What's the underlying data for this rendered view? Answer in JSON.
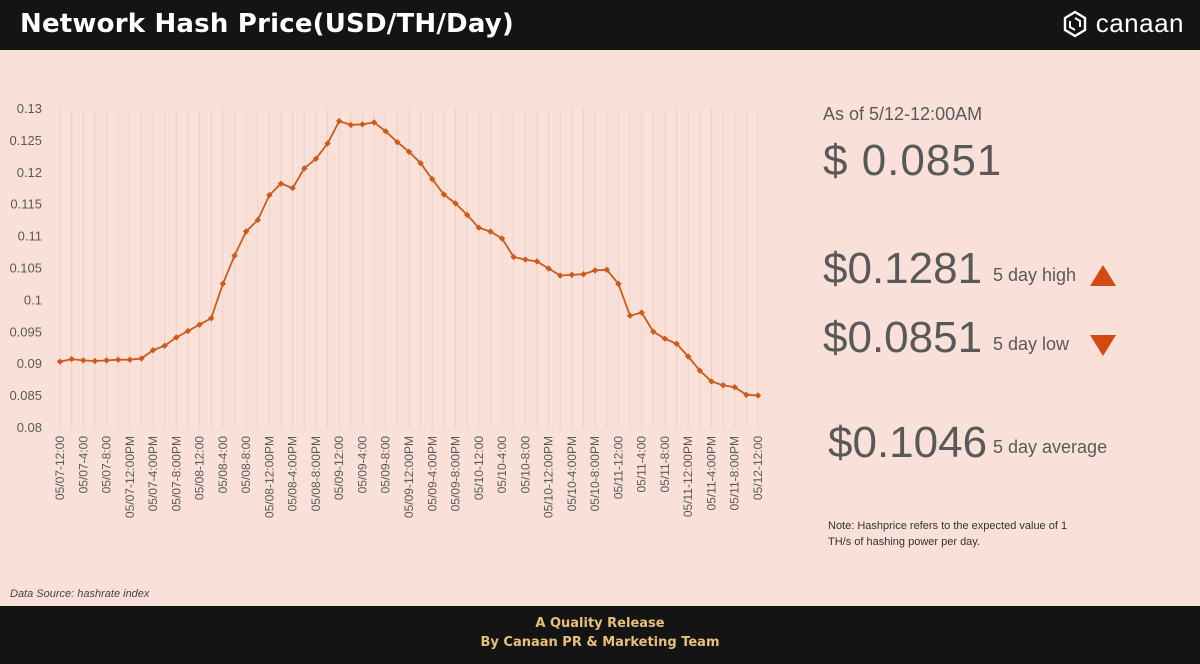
{
  "header": {
    "title": "Network Hash Price(USD/TH/Day)",
    "brand": "canaan",
    "brand_icon": "hexagon-cube-icon"
  },
  "stats": {
    "as_of": "As of 5/12-12:00AM",
    "current": "$ 0.0851",
    "high_value": "$0.1281",
    "high_label": "5 day high",
    "low_value": "$0.0851",
    "low_label": "5 day low",
    "avg_value": "$0.1046",
    "avg_label": "5 day average",
    "accent_color": "#d24a12"
  },
  "note": "Note: Hashprice refers to the expected value of 1 TH/s of hashing power per day.",
  "source": "Data Source: hashrate index",
  "footer": {
    "line1": "A Quality Release",
    "line2": "By Canaan PR & Marketing Team"
  },
  "chart_data": {
    "type": "line",
    "title": "",
    "xlabel": "",
    "ylabel": "",
    "ylim": [
      0.08,
      0.13
    ],
    "yticks": [
      "0.08",
      "0.085",
      "0.09",
      "0.095",
      "0.1",
      "0.105",
      "0.11",
      "0.115",
      "0.12",
      "0.125",
      "0.13"
    ],
    "grid": "vertical",
    "line_color": "#cc5a1a",
    "x": [
      "05/07-12:00",
      "05/07-2:00",
      "05/07-4:00",
      "05/07-6:00",
      "05/07-8:00",
      "05/07-10:00",
      "05/07-12:00PM",
      "05/07-2:00PM",
      "05/07-4:00PM",
      "05/07-6:00PM",
      "05/07-8:00PM",
      "05/07-10:00PM",
      "05/08-12:00",
      "05/08-2:00",
      "05/08-4:00",
      "05/08-6:00",
      "05/08-8:00",
      "05/08-10:00",
      "05/08-12:00PM",
      "05/08-2:00PM",
      "05/08-4:00PM",
      "05/08-6:00PM",
      "05/08-8:00PM",
      "05/08-10:00PM",
      "05/09-12:00",
      "05/09-2:00",
      "05/09-4:00",
      "05/09-6:00",
      "05/09-8:00",
      "05/09-10:00",
      "05/09-12:00PM",
      "05/09-2:00PM",
      "05/09-4:00PM",
      "05/09-6:00PM",
      "05/09-8:00PM",
      "05/09-10:00PM",
      "05/10-12:00",
      "05/10-2:00",
      "05/10-4:00",
      "05/10-6:00",
      "05/10-8:00",
      "05/10-10:00",
      "05/10-12:00PM",
      "05/10-2:00PM",
      "05/10-4:00PM",
      "05/10-6:00PM",
      "05/10-8:00PM",
      "05/10-10:00PM",
      "05/11-12:00",
      "05/11-2:00",
      "05/11-4:00",
      "05/11-6:00",
      "05/11-8:00",
      "05/11-10:00",
      "05/11-12:00PM",
      "05/11-2:00PM",
      "05/11-4:00PM",
      "05/11-6:00PM",
      "05/11-8:00PM",
      "05/11-10:00PM",
      "05/12-12:00"
    ],
    "visible_labels": [
      "05/07-12:00",
      "05/07-4:00",
      "05/07-8:00",
      "05/07-12:00PM",
      "05/07-4:00PM",
      "05/07-8:00PM",
      "05/08-12:00",
      "05/08-4:00",
      "05/08-8:00",
      "05/08-12:00PM",
      "05/08-4:00PM",
      "05/08-8:00PM",
      "05/09-12:00",
      "05/09-4:00",
      "05/09-8:00",
      "05/09-12:00PM",
      "05/09-4:00PM",
      "05/09-8:00PM",
      "05/10-12:00",
      "05/10-4:00",
      "05/10-8:00",
      "05/10-12:00PM",
      "05/10-4:00PM",
      "05/10-8:00PM",
      "05/11-12:00",
      "05/11-4:00",
      "05/11-8:00",
      "05/11-12:00PM",
      "05/11-4:00PM",
      "05/11-8:00PM",
      "05/12-12:00"
    ],
    "series": [
      {
        "name": "",
        "values": [
          0.0904,
          0.0908,
          0.0906,
          0.0905,
          0.0906,
          0.0907,
          0.0907,
          0.0909,
          0.0922,
          0.0929,
          0.0942,
          0.0952,
          0.0962,
          0.0972,
          0.1026,
          0.107,
          0.1108,
          0.1126,
          0.1165,
          0.1183,
          0.1176,
          0.1207,
          0.1222,
          0.1246,
          0.1281,
          0.1275,
          0.1276,
          0.1279,
          0.1265,
          0.1248,
          0.1233,
          0.1215,
          0.119,
          0.1166,
          0.1152,
          0.1134,
          0.1114,
          0.1108,
          0.1097,
          0.1068,
          0.1064,
          0.1061,
          0.105,
          0.1039,
          0.104,
          0.1041,
          0.1047,
          0.1048,
          0.1026,
          0.0976,
          0.0981,
          0.0951,
          0.094,
          0.0932,
          0.0912,
          0.089,
          0.0873,
          0.0867,
          0.0864,
          0.0852,
          0.0851
        ]
      }
    ]
  }
}
